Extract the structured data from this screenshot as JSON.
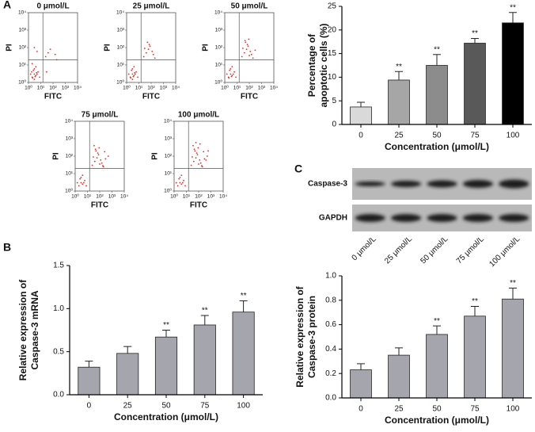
{
  "panels": [
    "A",
    "B",
    "C"
  ],
  "blot": {
    "rows": [
      "Caspase-3",
      "GAPDH"
    ],
    "lanes": [
      "0 μmol/L",
      "25 μmol/L",
      "50 μmol/L",
      "75 μmol/L",
      "100 μmol/L"
    ]
  },
  "chart_data": [
    {
      "type": "scatter",
      "title": "0 μmol/L",
      "xlabel": "FITC",
      "ylabel": "PI",
      "log": true,
      "color": "#e8281e",
      "xlim": [
        1,
        10000
      ],
      "ylim": [
        1,
        10000
      ],
      "xticks": [
        {
          "value": 1,
          "label": "10⁰"
        },
        {
          "value": 10,
          "label": "10¹"
        },
        {
          "value": 100,
          "label": "10²"
        },
        {
          "value": 1000,
          "label": "10³"
        },
        {
          "value": 10000,
          "label": "10⁴"
        }
      ],
      "yticks": [
        {
          "value": 1,
          "label": "10⁰"
        },
        {
          "value": 10,
          "label": "10¹"
        },
        {
          "value": 100,
          "label": "10²"
        },
        {
          "value": 1000,
          "label": "10³"
        },
        {
          "value": 10000,
          "label": "10⁴"
        }
      ],
      "gate": [
        15,
        20
      ],
      "x": [
        2,
        3,
        4,
        2.5,
        5,
        3,
        6,
        1.5,
        4,
        8,
        3,
        2,
        40,
        60,
        25,
        150,
        5,
        3,
        200,
        30,
        2.2,
        3.5,
        1.8,
        4.5
      ],
      "y": [
        2,
        3,
        2.5,
        5,
        3,
        6,
        4,
        3,
        8,
        2,
        1.5,
        12,
        50,
        80,
        30,
        40,
        60,
        100,
        20,
        4,
        1.8,
        2.2,
        4,
        3.6
      ]
    },
    {
      "type": "scatter",
      "title": "25 μmol/L",
      "xlabel": "FITC",
      "ylabel": "PI",
      "log": true,
      "color": "#e8281e",
      "xlim": [
        1,
        10000
      ],
      "ylim": [
        1,
        10000
      ],
      "xticks": [
        {
          "value": 1,
          "label": "10⁰"
        },
        {
          "value": 10,
          "label": "10¹"
        },
        {
          "value": 100,
          "label": "10²"
        },
        {
          "value": 1000,
          "label": "10³"
        },
        {
          "value": 10000,
          "label": "10⁴"
        }
      ],
      "yticks": [
        {
          "value": 1,
          "label": "10⁰"
        },
        {
          "value": 10,
          "label": "10¹"
        },
        {
          "value": 100,
          "label": "10²"
        },
        {
          "value": 1000,
          "label": "10³"
        },
        {
          "value": 10000,
          "label": "10⁴"
        }
      ],
      "gate": [
        15,
        20
      ],
      "x": [
        2,
        3,
        4,
        2.5,
        5,
        3,
        6,
        1.5,
        4,
        8,
        3,
        40,
        60,
        25,
        150,
        80,
        50,
        120,
        30,
        200,
        70,
        2.2,
        3.5,
        4.5
      ],
      "y": [
        2,
        3,
        2.5,
        5,
        3,
        6,
        4,
        3,
        8,
        2,
        1.5,
        50,
        80,
        30,
        40,
        120,
        200,
        60,
        90,
        25,
        150,
        1.8,
        2.2,
        3.6
      ]
    },
    {
      "type": "scatter",
      "title": "50 μmol/L",
      "xlabel": "FITC",
      "ylabel": "PI",
      "log": true,
      "color": "#e8281e",
      "xlim": [
        1,
        10000
      ],
      "ylim": [
        1,
        10000
      ],
      "xticks": [
        {
          "value": 1,
          "label": "10⁰"
        },
        {
          "value": 10,
          "label": "10¹"
        },
        {
          "value": 100,
          "label": "10²"
        },
        {
          "value": 1000,
          "label": "10³"
        },
        {
          "value": 10000,
          "label": "10⁴"
        }
      ],
      "yticks": [
        {
          "value": 1,
          "label": "10⁰"
        },
        {
          "value": 10,
          "label": "10¹"
        },
        {
          "value": 100,
          "label": "10²"
        },
        {
          "value": 1000,
          "label": "10³"
        },
        {
          "value": 10000,
          "label": "10⁴"
        }
      ],
      "gate": [
        15,
        20
      ],
      "x": [
        2,
        3,
        4,
        2.5,
        5,
        3,
        6,
        1.5,
        4,
        8,
        40,
        60,
        25,
        150,
        80,
        50,
        120,
        30,
        200,
        70,
        300,
        90,
        2.2,
        3.5,
        100,
        45
      ],
      "y": [
        2,
        3,
        2.5,
        5,
        3,
        6,
        4,
        3,
        8,
        2,
        50,
        80,
        30,
        40,
        120,
        200,
        60,
        90,
        25,
        150,
        70,
        300,
        1.8,
        2.2,
        35,
        250
      ]
    },
    {
      "type": "scatter",
      "title": "75 μmol/L",
      "xlabel": "FITC",
      "ylabel": "PI",
      "log": true,
      "color": "#e8281e",
      "xlim": [
        1,
        10000
      ],
      "ylim": [
        1,
        10000
      ],
      "xticks": [
        {
          "value": 1,
          "label": "10⁰"
        },
        {
          "value": 10,
          "label": "10¹"
        },
        {
          "value": 100,
          "label": "10²"
        },
        {
          "value": 1000,
          "label": "10³"
        },
        {
          "value": 10000,
          "label": "10⁴"
        }
      ],
      "yticks": [
        {
          "value": 1,
          "label": "10⁰"
        },
        {
          "value": 10,
          "label": "10¹"
        },
        {
          "value": 100,
          "label": "10²"
        },
        {
          "value": 1000,
          "label": "10³"
        },
        {
          "value": 10000,
          "label": "10⁴"
        }
      ],
      "gate": [
        15,
        20
      ],
      "x": [
        2,
        3,
        4,
        2.5,
        5,
        3,
        6,
        1.5,
        4,
        8,
        40,
        60,
        25,
        150,
        80,
        50,
        120,
        30,
        200,
        70,
        300,
        90,
        500,
        100,
        45,
        250,
        35,
        180
      ],
      "y": [
        2,
        3,
        2.5,
        5,
        3,
        6,
        4,
        3,
        8,
        2,
        50,
        80,
        30,
        40,
        120,
        200,
        60,
        90,
        25,
        150,
        70,
        300,
        100,
        35,
        250,
        180,
        400,
        28
      ]
    },
    {
      "type": "scatter",
      "title": "100 μmol/L",
      "xlabel": "FITC",
      "ylabel": "PI",
      "log": true,
      "color": "#e8281e",
      "xlim": [
        1,
        10000
      ],
      "ylim": [
        1,
        10000
      ],
      "xticks": [
        {
          "value": 1,
          "label": "10⁰"
        },
        {
          "value": 10,
          "label": "10¹"
        },
        {
          "value": 100,
          "label": "10²"
        },
        {
          "value": 1000,
          "label": "10³"
        },
        {
          "value": 10000,
          "label": "10⁴"
        }
      ],
      "yticks": [
        {
          "value": 1,
          "label": "10⁰"
        },
        {
          "value": 10,
          "label": "10¹"
        },
        {
          "value": 100,
          "label": "10²"
        },
        {
          "value": 1000,
          "label": "10³"
        },
        {
          "value": 10000,
          "label": "10⁴"
        }
      ],
      "gate": [
        15,
        20
      ],
      "x": [
        2,
        3,
        4,
        2.5,
        5,
        3,
        6,
        1.5,
        4,
        8,
        40,
        60,
        25,
        150,
        80,
        50,
        120,
        30,
        200,
        70,
        300,
        90,
        500,
        100,
        45,
        250,
        35,
        180,
        600,
        400,
        130,
        60
      ],
      "y": [
        2,
        3,
        2.5,
        5,
        3,
        6,
        4,
        3,
        8,
        2,
        50,
        80,
        30,
        40,
        120,
        200,
        60,
        90,
        25,
        150,
        70,
        300,
        100,
        35,
        250,
        180,
        400,
        28,
        200,
        60,
        500,
        600
      ]
    },
    {
      "type": "bar",
      "ylabel": [
        "Percentage of",
        "apoptotic cells (%)"
      ],
      "xlabel": "Concentration (μmol/L)",
      "categories": [
        "0",
        "25",
        "50",
        "75",
        "100"
      ],
      "values": [
        3.7,
        9.4,
        12.5,
        17.2,
        21.5
      ],
      "errors": [
        1.0,
        1.8,
        2.3,
        1.0,
        2.2
      ],
      "colors": [
        "#d9d9d9",
        "#a6a6a6",
        "#8c8c8c",
        "#595959",
        "#000000"
      ],
      "markers": [
        null,
        "**",
        "**",
        "**",
        "**"
      ],
      "ylim": [
        0,
        25
      ],
      "yticks": [
        0,
        5,
        10,
        15,
        20,
        25
      ]
    },
    {
      "type": "bar",
      "ylabel": [
        "Relative expression of",
        "Caspase-3 mRNA"
      ],
      "xlabel": "Concentration (μmol/L)",
      "categories": [
        "0",
        "25",
        "50",
        "75",
        "100"
      ],
      "values": [
        0.32,
        0.48,
        0.67,
        0.81,
        0.96
      ],
      "errors": [
        0.07,
        0.08,
        0.08,
        0.11,
        0.13
      ],
      "color": "#a5a5ad",
      "markers": [
        null,
        null,
        "**",
        "**",
        "**"
      ],
      "ylim": [
        0,
        1.5
      ],
      "yticks": [
        {
          "value": 0,
          "label": "0.0"
        },
        {
          "value": 0.5,
          "label": "0.5"
        },
        {
          "value": 1,
          "label": "1.0"
        },
        {
          "value": 1.5,
          "label": "1.5"
        }
      ]
    },
    {
      "type": "bar",
      "ylabel": [
        "Relative expression of",
        "Caspase-3 protein"
      ],
      "xlabel": "Concentration (μmol/L)",
      "categories": [
        "0",
        "25",
        "50",
        "75",
        "100"
      ],
      "values": [
        0.23,
        0.35,
        0.52,
        0.67,
        0.81
      ],
      "errors": [
        0.05,
        0.06,
        0.07,
        0.08,
        0.09
      ],
      "color": "#a5a5ad",
      "markers": [
        null,
        null,
        "**",
        "**",
        "**"
      ],
      "ylim": [
        0,
        1
      ],
      "yticks": [
        {
          "value": 0,
          "label": "0.0"
        },
        {
          "value": 0.2,
          "label": "0.2"
        },
        {
          "value": 0.4,
          "label": "0.4"
        },
        {
          "value": 0.6,
          "label": "0.6"
        },
        {
          "value": 0.8,
          "label": "0.8"
        },
        {
          "value": 1,
          "label": "1.0"
        }
      ]
    }
  ]
}
